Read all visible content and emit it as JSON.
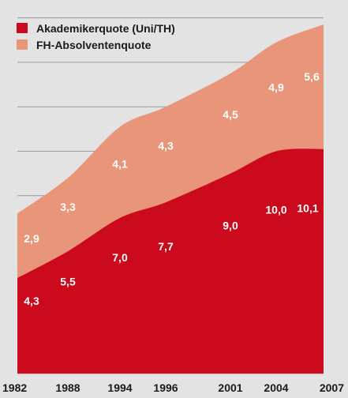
{
  "chart_data": {
    "type": "area",
    "stacked": true,
    "categories": [
      "1982",
      "1988",
      "1994",
      "1996",
      "2001",
      "2004",
      "2007"
    ],
    "series": [
      {
        "name": "Akademikerquote (Uni/TH)",
        "values": [
          4.3,
          5.5,
          7.0,
          7.7,
          9.0,
          10.0,
          10.1
        ],
        "labels": [
          "4,3",
          "5,5",
          "7,0",
          "7,7",
          "9,0",
          "10,0",
          "10,1"
        ]
      },
      {
        "name": "FH-Absolventenquote",
        "values": [
          2.9,
          3.3,
          4.1,
          4.3,
          4.5,
          4.9,
          5.6
        ],
        "labels": [
          "2,9",
          "3,3",
          "4,1",
          "4,3",
          "4,5",
          "4,9",
          "5,6"
        ]
      }
    ],
    "ylim": [
      0,
      16
    ],
    "grid": true,
    "legend": "top-left",
    "colors": {
      "series1": "#cc0a1e",
      "series2": "#e8957a",
      "background": "#e3e3e3",
      "grid": "#9a9a9a"
    }
  }
}
